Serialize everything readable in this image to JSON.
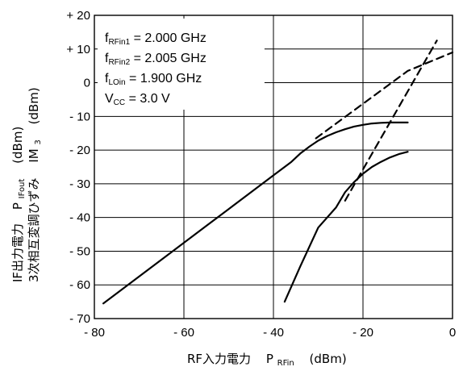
{
  "chart_data": {
    "type": "line",
    "title": "",
    "xlabel": {
      "main": "RF入力電力",
      "sym": "P",
      "sub": "RFin",
      "unit": "(dBm)"
    },
    "ylabel_line1": {
      "main": "IF出力電力",
      "sym": "P",
      "sub": "IFout",
      "unit": "(dBm)"
    },
    "ylabel_line2": {
      "main": "3次相互変調ひずみ",
      "sym": "IM",
      "sub": "3",
      "unit": "(dBm)"
    },
    "xlim": [
      -80,
      0
    ],
    "ylim": [
      -70,
      20
    ],
    "grid": true,
    "x_ticks": [
      {
        "value": -80,
        "label": "- 80"
      },
      {
        "value": -60,
        "label": "- 60"
      },
      {
        "value": -40,
        "label": "- 40"
      },
      {
        "value": -20,
        "label": "- 20"
      },
      {
        "value": 0,
        "label": "0"
      }
    ],
    "y_ticks": [
      {
        "value": 20,
        "label": "+ 20"
      },
      {
        "value": 10,
        "label": "+ 10"
      },
      {
        "value": 0,
        "label": "0"
      },
      {
        "value": -10,
        "label": "- 10"
      },
      {
        "value": -20,
        "label": "- 20"
      },
      {
        "value": -30,
        "label": "- 30"
      },
      {
        "value": -40,
        "label": "- 40"
      },
      {
        "value": -50,
        "label": "- 50"
      },
      {
        "value": -60,
        "label": "- 60"
      },
      {
        "value": -70,
        "label": "- 70"
      }
    ],
    "annotations": [
      {
        "pre": "f",
        "sub": "RFin1",
        "post": " = 2.000 GHz"
      },
      {
        "pre": "f",
        "sub": "RFin2",
        "post": " = 2.005 GHz"
      },
      {
        "pre": "f",
        "sub": "LOin",
        "post": " = 1.900 GHz"
      },
      {
        "pre": "V",
        "sub": "CC",
        "post": " = 3.0 V"
      }
    ],
    "series": [
      {
        "style": "solid",
        "x": [
          -78,
          -60,
          -50,
          -40,
          -36,
          -34,
          -32,
          -30,
          -28,
          -26,
          -24,
          -22,
          -20,
          -18,
          -16,
          -14,
          -12,
          -10
        ],
        "y": [
          -65.5,
          -47.5,
          -37.5,
          -27.5,
          -23.5,
          -21.0,
          -19.0,
          -17.2,
          -15.8,
          -14.7,
          -13.8,
          -13.0,
          -12.5,
          -12.1,
          -11.9,
          -11.8,
          -11.8,
          -11.8
        ]
      },
      {
        "style": "solid",
        "x": [
          -37.5,
          -34,
          -30,
          -26,
          -24,
          -22,
          -20,
          -18,
          -16,
          -14,
          -12,
          -10
        ],
        "y": [
          -65,
          -54.5,
          -43,
          -37,
          -32.5,
          -29.5,
          -27,
          -25,
          -23.5,
          -22.2,
          -21.2,
          -20.5
        ]
      },
      {
        "style": "dashed",
        "x": [
          -30.5,
          -10,
          0
        ],
        "y": [
          -16.5,
          3.5,
          9
        ]
      },
      {
        "style": "dashed",
        "x": [
          -24,
          -3.5
        ],
        "y": [
          -35,
          12.5
        ]
      }
    ]
  }
}
